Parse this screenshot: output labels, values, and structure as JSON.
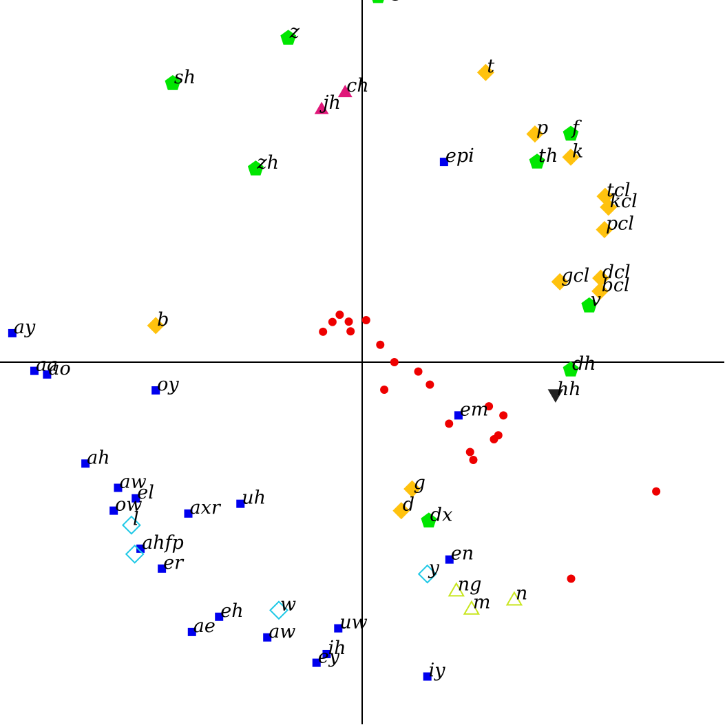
{
  "chart_data": {
    "type": "scatter",
    "title": "",
    "xlabel": "",
    "ylabel": "",
    "xlim": [
      -1.0,
      1.0
    ],
    "ylim": [
      -1.0,
      1.0
    ],
    "grid": false,
    "legend": "none",
    "styles": {
      "vowel": {
        "shape": "square",
        "fill": "#0000EE",
        "stroke": "none"
      },
      "stop": {
        "shape": "diamond",
        "fill": "#FFC20E",
        "stroke": "none"
      },
      "fric": {
        "shape": "pentagon",
        "fill": "#00E600",
        "stroke": "none"
      },
      "affr": {
        "shape": "triangle",
        "fill": "#E0187A",
        "stroke": "none"
      },
      "glide": {
        "shape": "diamond",
        "fill": "none",
        "stroke": "#1EC8E6"
      },
      "nasal": {
        "shape": "triangle",
        "fill": "none",
        "stroke": "#C8E61E"
      },
      "hh": {
        "shape": "triangle-down",
        "fill": "#222222",
        "stroke": "none"
      },
      "center": {
        "shape": "circle",
        "fill": "#EE0000",
        "stroke": "none"
      }
    },
    "points": [
      {
        "label": "ng",
        "x": 0.044,
        "y": 1.01,
        "cls": "fric"
      },
      {
        "label": "z",
        "x": -0.204,
        "y": 0.895,
        "cls": "fric"
      },
      {
        "label": "sh",
        "x": -0.523,
        "y": 0.77,
        "cls": "fric"
      },
      {
        "label": "ch",
        "x": -0.047,
        "y": 0.747,
        "cls": "affr"
      },
      {
        "label": "jh",
        "x": -0.112,
        "y": 0.7,
        "cls": "affr"
      },
      {
        "label": "t",
        "x": 0.341,
        "y": 0.8,
        "cls": "stop"
      },
      {
        "label": "p",
        "x": 0.477,
        "y": 0.63,
        "cls": "stop"
      },
      {
        "label": "f",
        "x": 0.576,
        "y": 0.63,
        "cls": "fric"
      },
      {
        "label": "epi",
        "x": 0.226,
        "y": 0.553,
        "cls": "vowel"
      },
      {
        "label": "th",
        "x": 0.483,
        "y": 0.553,
        "cls": "fric"
      },
      {
        "label": "k",
        "x": 0.576,
        "y": 0.566,
        "cls": "stop"
      },
      {
        "label": "zh",
        "x": -0.294,
        "y": 0.534,
        "cls": "fric"
      },
      {
        "label": "tcl",
        "x": 0.671,
        "y": 0.458,
        "cls": "stop"
      },
      {
        "label": "kcl",
        "x": 0.68,
        "y": 0.428,
        "cls": "stop"
      },
      {
        "label": "pcl",
        "x": 0.669,
        "y": 0.366,
        "cls": "stop"
      },
      {
        "label": "gcl",
        "x": 0.546,
        "y": 0.222,
        "cls": "stop"
      },
      {
        "label": "dcl",
        "x": 0.659,
        "y": 0.232,
        "cls": "stop"
      },
      {
        "label": "bcl",
        "x": 0.657,
        "y": 0.196,
        "cls": "stop"
      },
      {
        "label": "v",
        "x": 0.627,
        "y": 0.156,
        "cls": "fric"
      },
      {
        "label": "b",
        "x": -0.57,
        "y": 0.101,
        "cls": "stop"
      },
      {
        "label": "ay",
        "x": -0.966,
        "y": 0.08,
        "cls": "vowel"
      },
      {
        "label": "aa",
        "x": -0.905,
        "y": -0.024,
        "cls": "vowel"
      },
      {
        "label": "ao",
        "x": -0.87,
        "y": -0.034,
        "cls": "vowel"
      },
      {
        "label": "oy",
        "x": -0.57,
        "y": -0.078,
        "cls": "vowel"
      },
      {
        "label": "dh",
        "x": 0.576,
        "y": -0.021,
        "cls": "fric"
      },
      {
        "label": "hh",
        "x": 0.534,
        "y": -0.091,
        "cls": "hh"
      },
      {
        "label": "em",
        "x": 0.266,
        "y": -0.147,
        "cls": "vowel"
      },
      {
        "label": "ah",
        "x": -0.764,
        "y": -0.28,
        "cls": "vowel"
      },
      {
        "label": "aw",
        "x": -0.674,
        "y": -0.347,
        "cls": "vowel"
      },
      {
        "label": "el",
        "x": -0.625,
        "y": -0.376,
        "cls": "vowel"
      },
      {
        "label": "ow",
        "x": -0.686,
        "y": -0.41,
        "cls": "vowel"
      },
      {
        "label": "axr",
        "x": -0.48,
        "y": -0.418,
        "cls": "vowel"
      },
      {
        "label": "uh",
        "x": -0.336,
        "y": -0.391,
        "cls": "vowel"
      },
      {
        "label": "l",
        "x": -0.637,
        "y": -0.45,
        "cls": "glide"
      },
      {
        "label": "ahfp",
        "x": -0.612,
        "y": -0.515,
        "cls": "vowel"
      },
      {
        "label": "",
        "x": -0.628,
        "y": -0.53,
        "cls": "glide"
      },
      {
        "label": "er",
        "x": -0.553,
        "y": -0.57,
        "cls": "vowel"
      },
      {
        "label": "g",
        "x": 0.138,
        "y": -0.35,
        "cls": "stop"
      },
      {
        "label": "d",
        "x": 0.108,
        "y": -0.41,
        "cls": "stop"
      },
      {
        "label": "dx",
        "x": 0.184,
        "y": -0.438,
        "cls": "fric"
      },
      {
        "label": "en",
        "x": 0.241,
        "y": -0.545,
        "cls": "vowel"
      },
      {
        "label": "y",
        "x": 0.18,
        "y": -0.585,
        "cls": "glide"
      },
      {
        "label": "ng",
        "x": 0.26,
        "y": -0.63,
        "cls": "nasal"
      },
      {
        "label": "n",
        "x": 0.42,
        "y": -0.655,
        "cls": "nasal"
      },
      {
        "label": "m",
        "x": 0.302,
        "y": -0.68,
        "cls": "nasal"
      },
      {
        "label": "w",
        "x": -0.23,
        "y": -0.685,
        "cls": "glide"
      },
      {
        "label": "eh",
        "x": -0.395,
        "y": -0.703,
        "cls": "vowel"
      },
      {
        "label": "ae",
        "x": -0.47,
        "y": -0.745,
        "cls": "vowel"
      },
      {
        "label": "aw",
        "x": -0.262,
        "y": -0.76,
        "cls": "vowel"
      },
      {
        "label": "uw",
        "x": -0.066,
        "y": -0.735,
        "cls": "vowel"
      },
      {
        "label": "ih",
        "x": -0.098,
        "y": -0.806,
        "cls": "vowel"
      },
      {
        "label": "ey",
        "x": -0.126,
        "y": -0.83,
        "cls": "vowel"
      },
      {
        "label": "iy",
        "x": 0.18,
        "y": -0.868,
        "cls": "vowel"
      },
      {
        "label": "",
        "x": -0.108,
        "y": 0.084,
        "cls": "center"
      },
      {
        "label": "",
        "x": -0.082,
        "y": 0.111,
        "cls": "center"
      },
      {
        "label": "",
        "x": -0.062,
        "y": 0.131,
        "cls": "center"
      },
      {
        "label": "",
        "x": -0.037,
        "y": 0.112,
        "cls": "center"
      },
      {
        "label": "",
        "x": -0.032,
        "y": 0.085,
        "cls": "center"
      },
      {
        "label": "",
        "x": 0.011,
        "y": 0.116,
        "cls": "center"
      },
      {
        "label": "",
        "x": 0.05,
        "y": 0.048,
        "cls": "center"
      },
      {
        "label": "",
        "x": 0.089,
        "y": 0.0,
        "cls": "center"
      },
      {
        "label": "",
        "x": 0.061,
        "y": -0.076,
        "cls": "center"
      },
      {
        "label": "",
        "x": 0.155,
        "y": -0.026,
        "cls": "center"
      },
      {
        "label": "",
        "x": 0.187,
        "y": -0.062,
        "cls": "center"
      },
      {
        "label": "",
        "x": 0.35,
        "y": -0.122,
        "cls": "center"
      },
      {
        "label": "",
        "x": 0.39,
        "y": -0.147,
        "cls": "center"
      },
      {
        "label": "",
        "x": 0.24,
        "y": -0.17,
        "cls": "center"
      },
      {
        "label": "",
        "x": 0.376,
        "y": -0.202,
        "cls": "center"
      },
      {
        "label": "",
        "x": 0.364,
        "y": -0.213,
        "cls": "center"
      },
      {
        "label": "",
        "x": 0.298,
        "y": -0.248,
        "cls": "center"
      },
      {
        "label": "",
        "x": 0.307,
        "y": -0.27,
        "cls": "center"
      },
      {
        "label": "",
        "x": 0.812,
        "y": -0.357,
        "cls": "center"
      },
      {
        "label": "",
        "x": 0.577,
        "y": -0.598,
        "cls": "center"
      }
    ]
  }
}
